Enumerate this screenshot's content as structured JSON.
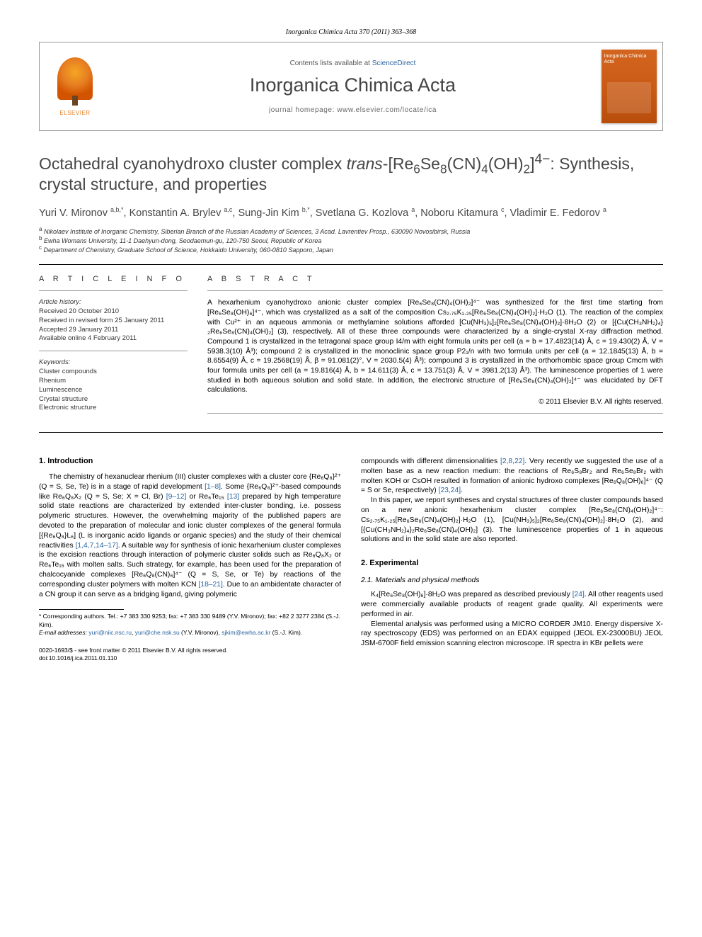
{
  "header": {
    "journal_ref": "Inorganica Chimica Acta 370 (2011) 363–368",
    "contents_prefix": "Contents lists available at ",
    "contents_link": "ScienceDirect",
    "journal_name": "Inorganica Chimica Acta",
    "homepage_label": "journal homepage: www.elsevier.com/locate/ica",
    "publisher_label": "ELSEVIER",
    "cover_title": "Inorganica Chimica Acta"
  },
  "title_parts": {
    "p1": "Octahedral cyanohydroxo cluster complex ",
    "p2": "trans",
    "p3": "-[Re",
    "p4": "Se",
    "p5": "(CN)",
    "p6": "(OH)",
    "p7": "]",
    "p8": ": Synthesis, crystal structure, and properties",
    "sub6": "6",
    "sub8": "8",
    "sub4": "4",
    "sub2": "2",
    "sup4m": "4−"
  },
  "authors_line": "Yuri V. Mironov a,b,*, Konstantin A. Brylev a,c, Sung-Jin Kim b,*, Svetlana G. Kozlova a, Noboru Kitamura c, Vladimir E. Fedorov a",
  "authors": [
    {
      "name": "Yuri V. Mironov",
      "aff": "a,b,",
      "mark": "*"
    },
    {
      "name": ", Konstantin A. Brylev",
      "aff": "a,c",
      "mark": ""
    },
    {
      "name": ", Sung-Jin Kim",
      "aff": "b,",
      "mark": "*"
    },
    {
      "name": ", Svetlana G. Kozlova",
      "aff": "a",
      "mark": ""
    },
    {
      "name": ", Noboru Kitamura",
      "aff": "c",
      "mark": ""
    },
    {
      "name": ", Vladimir E. Fedorov",
      "aff": "a",
      "mark": ""
    }
  ],
  "affiliations": [
    {
      "sup": "a",
      "text": " Nikolaev Institute of Inorganic Chemistry, Siberian Branch of the Russian Academy of Sciences, 3 Acad. Lavrentiev Prosp., 630090 Novosibirsk, Russia"
    },
    {
      "sup": "b",
      "text": " Ewha Womans University, 11-1 Daehyun-dong, Seodaemun-gu, 120-750 Seoul, Republic of Korea"
    },
    {
      "sup": "c",
      "text": " Department of Chemistry, Graduate School of Science, Hokkaido University, 060-0810 Sapporo, Japan"
    }
  ],
  "info": {
    "section_label": "A R T I C L E   I N F O",
    "history_label": "Article history:",
    "received": "Received 20 October 2010",
    "revised": "Received in revised form 25 January 2011",
    "accepted": "Accepted 29 January 2011",
    "online": "Available online 4 February 2011",
    "keywords_label": "Keywords:",
    "keywords": [
      "Cluster compounds",
      "Rhenium",
      "Luminescence",
      "Crystal structure",
      "Electronic structure"
    ]
  },
  "abstract": {
    "label": "A B S T R A C T",
    "text": "A hexarhenium cyanohydroxo anionic cluster complex [Re₆Se₈(CN)₄(OH)₂]⁴⁻ was synthesized for the first time starting from [Re₆Se₈(OH)₆]⁴⁻, which was crystallized as a salt of the composition Cs₂.₇₅K₁.₂₅[Re₆Se₈(CN)₄(OH)₂]·H₂O (1). The reaction of the complex with Cu²⁺ in an aqueous ammonia or methylamine solutions afforded [Cu(NH₃)₅]₂[Re₆Se₈(CN)₄(OH)₂]·8H₂O (2) or [{Cu(CH₃NH₂)₄}₂Re₆Se₈(CN)₄(OH)₂] (3), respectively. All of these three compounds were characterized by a single-crystal X-ray diffraction method. Compound 1 is crystallized in the tetragonal space group I4/m with eight formula units per cell (a = b = 17.4823(14) Å, c = 19.430(2) Å, V = 5938.3(10) Å³); compound 2 is crystallized in the monoclinic space group P2₁/n with two formula units per cell (a = 12.1845(13) Å, b = 8.6554(9) Å, c = 19.2568(19) Å, β = 91.081(2)°, V = 2030.5(4) Å³); compound 3 is crystallized in the orthorhombic space group Cmcm with four formula units per cell (a = 19.816(4) Å, b = 14.611(3) Å, c = 13.751(3) Å, V = 3981.2(13) Å³). The luminescence properties of 1 were studied in both aqueous solution and solid state. In addition, the electronic structure of [Re₆Se₈(CN)₄(OH)₂]⁴⁻ was elucidated by DFT calculations.",
    "copyright": "© 2011 Elsevier B.V. All rights reserved."
  },
  "body": {
    "intro_heading": "1. Introduction",
    "intro_p1a": "The chemistry of hexanuclear rhenium (III) cluster complexes with a cluster core {Re₆Q₈}²⁺ (Q = S, Se, Te) is in a stage of rapid development ",
    "intro_ref1": "[1–8]",
    "intro_p1b": ". Some {Re₆Q₈}²⁺-based compounds like Re₆Q₈X₂ (Q = S, Se; X = Cl, Br) ",
    "intro_ref2": "[9–12]",
    "intro_p1c": " or Re₆Te₁₅ ",
    "intro_ref3": "[13]",
    "intro_p1d": " prepared by high temperature solid state reactions are characterized by extended inter-cluster bonding, i.e. possess polymeric structures. However, the overwhelming majority of the published papers are devoted to the preparation of molecular and ionic cluster complexes of the general formula [{Re₆Q₈}L₆] (L is inorganic acido ligands or organic species) and the study of their chemical reactivities ",
    "intro_ref4": "[1,4,7,14–17]",
    "intro_p1e": ". A suitable way for synthesis of ionic hexarhenium cluster complexes is the excision reactions through interaction of polymeric cluster solids such as Re₆Q₈X₂ or Re₆Te₁₅ with molten salts. Such strategy, for example, has been used for the preparation of chalcocyanide complexes [Re₆Q₈(CN)₆]⁴⁻ (Q = S, Se, or Te) by reactions of the corresponding cluster polymers with molten KCN ",
    "intro_ref5": "[18–21]",
    "intro_p1f": ". Due to an ambidentate character of a CN group it can serve as a bridging ligand, giving polymeric",
    "intro_p2a": "compounds with different dimensionalities ",
    "intro_ref6": "[2,8,22]",
    "intro_p2b": ". Very recently we suggested the use of a molten base as a new reaction medium: the reactions of Re₆S₈Br₂ and Re₆Se₈Br₂ with molten KOH or CsOH resulted in formation of anionic hydroxo complexes [Re₆Q₈(OH)₆]⁴⁻ (Q = S or Se, respectively) ",
    "intro_ref7": "[23,24]",
    "intro_p2c": ".",
    "intro_p3": "In this paper, we report syntheses and crystal structures of three cluster compounds based on a new anionic hexarhenium cluster complex [Re₆Se₈(CN)₄(OH)₂]⁴⁻: Cs₂.₇₅K₁.₂₅[Re₆Se₈(CN)₄(OH)₂]·H₂O (1), [Cu(NH₃)₅]₂[Re₆Se₈(CN)₄(OH)₂]·8H₂O (2), and [{Cu(CH₃NH₂)₄}₂Re₆Se₈(CN)₄(OH)₂] (3). The luminescence properties of 1 in aqueous solutions and in the solid state are also reported.",
    "exp_heading": "2. Experimental",
    "exp_sub": "2.1. Materials and physical methods",
    "exp_p1a": "K₄[Re₆Se₈(OH)₆]·8H₂O was prepared as described previously ",
    "exp_ref1": "[24]",
    "exp_p1b": ". All other reagents used were commercially available products of reagent grade quality. All experiments were performed in air.",
    "exp_p2": "Elemental analysis was performed using a MICRO CORDER JM10. Energy dispersive X-ray spectroscopy (EDS) was performed on an EDAX equipped (JEOL EX-23000BU) JEOL JSM-6700F field emission scanning electron microscope. IR spectra in KBr pellets were"
  },
  "footnotes": {
    "corr_label": "* Corresponding authors. Tel.: +7 383 330 9253; fax: +7 383 330 9489 (Y.V. Mironov); fax: +82 2 3277 2384 (S.-J. Kim).",
    "email_label": "E-mail addresses: ",
    "email1": "yuri@niic.nsc.ru",
    "email1_who": ", ",
    "email2": "yuri@che.nsk.su",
    "email2_who": " (Y.V. Mironov), ",
    "email3": "sjkim@ewha.ac.kr",
    "email3_who": " (S.-J. Kim)."
  },
  "footer": {
    "issn": "0020-1693/$ - see front matter © 2011 Elsevier B.V. All rights reserved.",
    "doi": "doi:10.1016/j.ica.2011.01.110"
  },
  "colors": {
    "link": "#2964a0",
    "text": "#000000",
    "gray_heading": "#464646",
    "cover_bg": "#c85a15",
    "elsevier_orange": "#e67e22"
  }
}
